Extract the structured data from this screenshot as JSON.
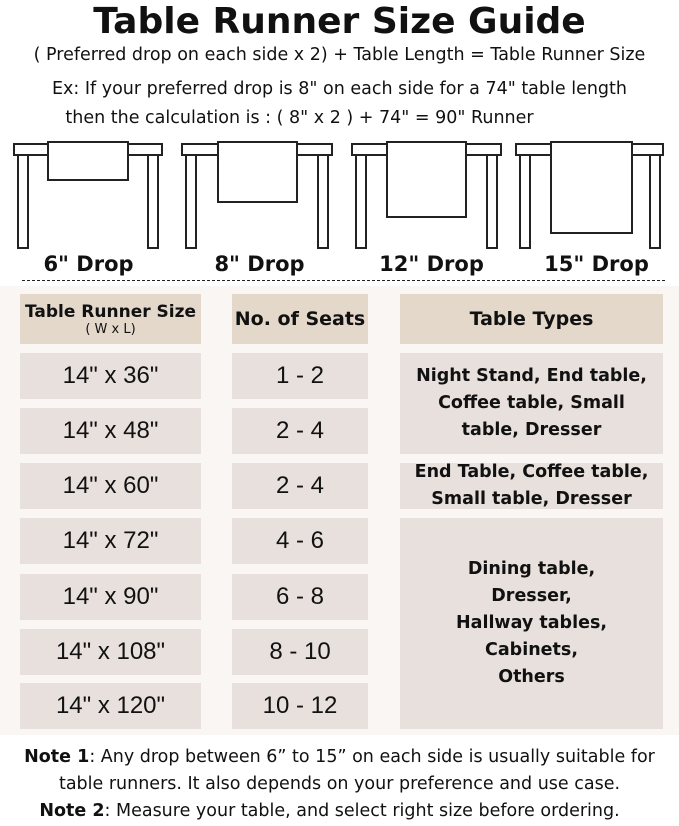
{
  "title": "Table Runner Size Guide",
  "formula": "( Preferred drop on each side x 2) + Table Length = Table Runner Size",
  "example_line1": "Ex: If your preferred drop is 8\" on each side for a 74\" table length",
  "example_line2": "then the calculation is : ( 8\" x 2 ) + 74\" = 90\" Runner",
  "drops": [
    "6\" Drop",
    "8\" Drop",
    "12\" Drop",
    "15\" Drop"
  ],
  "table": {
    "headers": {
      "size": "Table Runner Size",
      "size_sub": "( W x L)",
      "seats": "No. of Seats",
      "types": "Table Types"
    },
    "rows": [
      {
        "size": "14\" x 36\"",
        "seats": "1 - 2"
      },
      {
        "size": "14\" x 48\"",
        "seats": "2 - 4"
      },
      {
        "size": "14\" x 60\"",
        "seats": "2 - 4"
      },
      {
        "size": "14\" x 72\"",
        "seats": "4 - 6"
      },
      {
        "size": "14\" x 90\"",
        "seats": "6 - 8"
      },
      {
        "size": "14\" x 108\"",
        "seats": "8 - 10"
      },
      {
        "size": "14\" x 120\"",
        "seats": "10 - 12"
      }
    ],
    "types": [
      "Night Stand, End table, Coffee table, Small table, Dresser",
      "End Table, Coffee table, Small table, Dresser",
      "Dining table, Dresser, Hallway tables, Cabinets, Others"
    ]
  },
  "notes": {
    "note1_label": "Note 1",
    "note1_text": ": Any drop between 6” to 15” on each side is usually suitable for",
    "note1_text2": "table runners. It also depends on your preference and use case.",
    "note2_label": "Note 2",
    "note2_text": ": Measure your table, and select right size before ordering."
  },
  "colors": {
    "header_bg": "#e4d8cb",
    "cell_bg": "#e8e0dc",
    "panel_bg": "#f9f6f3"
  }
}
